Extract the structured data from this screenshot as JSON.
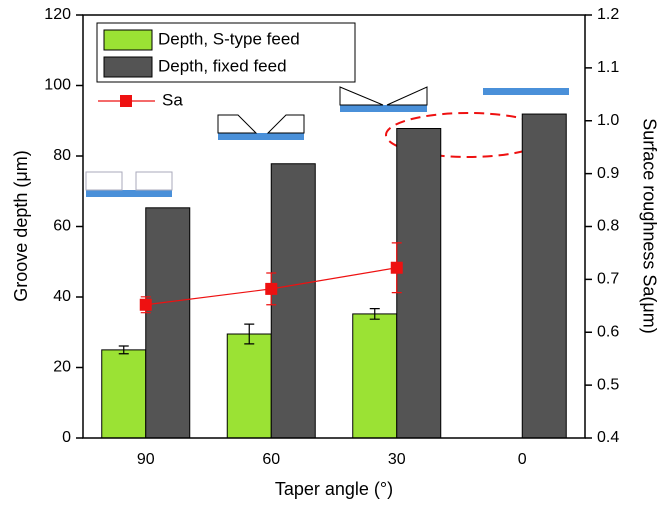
{
  "chart_data": {
    "type": "bar",
    "x_label": "Taper angle (°)",
    "y_label": "Groove depth (μm)",
    "y2_label": "Surface roughness Sa(μm)",
    "categories": [
      "90",
      "60",
      "30",
      "0"
    ],
    "series": [
      {
        "name": "Depth, S-type feed",
        "type": "bar",
        "color": "#9be234",
        "values": [
          25,
          29.5,
          35.2,
          null
        ],
        "errors": [
          1.1,
          2.8,
          1.5,
          null
        ]
      },
      {
        "name": "Depth, fixed feed",
        "type": "bar",
        "color": "#545454",
        "values": [
          65.3,
          77.8,
          87.8,
          91.9
        ]
      },
      {
        "name": "Sa",
        "type": "line",
        "axis": "y2",
        "color": "#ee1111",
        "values": [
          0.652,
          0.682,
          0.722,
          null
        ],
        "errors": [
          0.015,
          0.03,
          0.047,
          null
        ]
      }
    ],
    "ylim": [
      0,
      120
    ],
    "yticks": [
      0,
      20,
      40,
      60,
      80,
      100,
      120
    ],
    "y2lim": [
      0.4,
      1.2
    ],
    "y2ticks": [
      0.4,
      0.5,
      0.6,
      0.7,
      0.8,
      0.9,
      {
        "value": 1,
        "label": "1.0"
      },
      1.1,
      1.2
    ]
  }
}
